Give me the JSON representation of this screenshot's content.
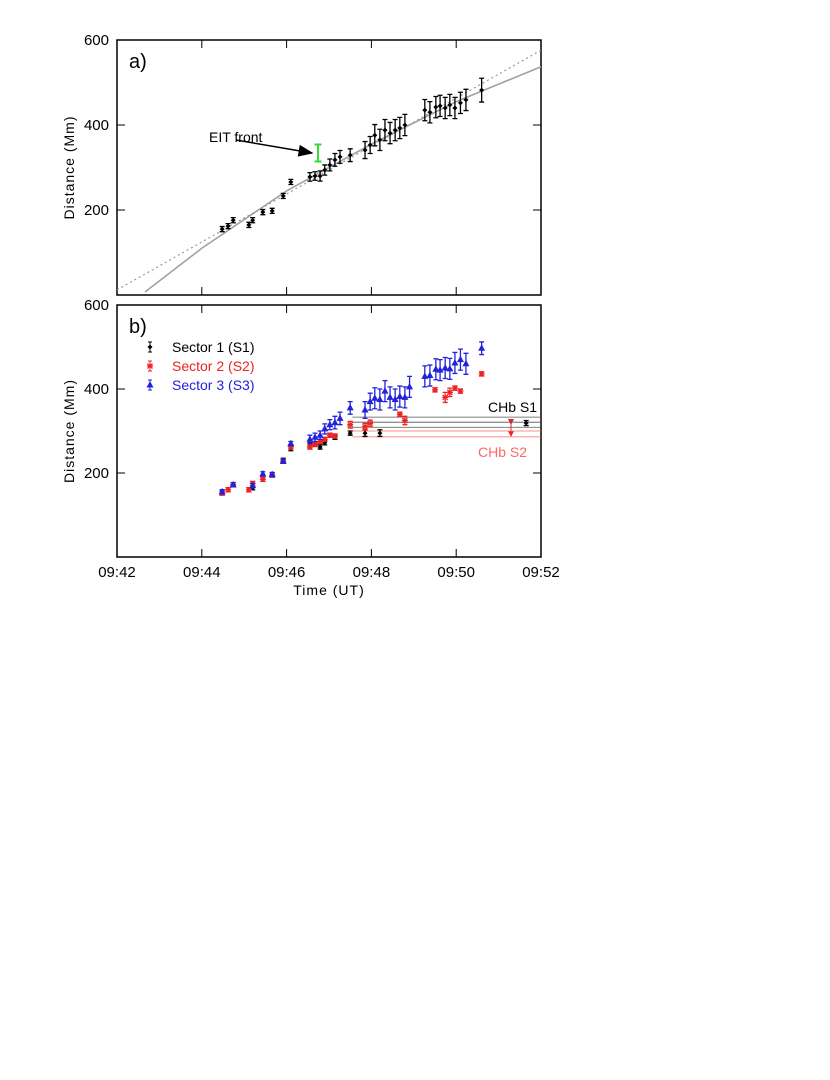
{
  "chart_data": [
    {
      "type": "scatter",
      "panel_label": "a)",
      "ylabel": "Distance (Mm)",
      "xlim": [
        42,
        52
      ],
      "ylim": [
        0,
        600
      ],
      "xticks": [
        {
          "value": 42,
          "label": "09:42"
        },
        {
          "value": 44,
          "label": "09:44"
        },
        {
          "value": 46,
          "label": "09:46"
        },
        {
          "value": 48,
          "label": "09:48"
        },
        {
          "value": 50,
          "label": "09:50"
        },
        {
          "value": 52,
          "label": "09:52"
        }
      ],
      "xtick_labels_shown": false,
      "yticks": [
        200,
        400,
        600
      ],
      "series": [
        {
          "color": "#000000",
          "marker": "diamond",
          "x": [
            44.48,
            44.62,
            44.74,
            45.11,
            45.2,
            45.44,
            45.66,
            45.92,
            46.1,
            46.55,
            46.67,
            46.79,
            46.9,
            47.02,
            47.14,
            47.26,
            47.5,
            47.85,
            47.97,
            48.08,
            48.2,
            48.32,
            48.44,
            48.56,
            48.67,
            48.79,
            49.26,
            49.38,
            49.52,
            49.62,
            49.74,
            49.85,
            49.97,
            50.1,
            50.23,
            50.6
          ],
          "values": [
            155,
            162,
            176,
            165,
            176,
            195,
            198,
            233,
            266,
            278,
            280,
            280,
            294,
            306,
            318,
            325,
            329,
            341,
            353,
            376,
            365,
            388,
            381,
            388,
            393,
            400,
            435,
            430,
            442,
            445,
            440,
            447,
            440,
            452,
            459,
            482
          ],
          "errors": [
            6,
            6,
            6,
            6,
            6,
            6,
            6,
            6,
            6,
            10,
            10,
            12,
            12,
            14,
            15,
            15,
            15,
            20,
            20,
            25,
            25,
            25,
            25,
            25,
            25,
            25,
            25,
            25,
            25,
            25,
            25,
            25,
            25,
            25,
            25,
            28
          ]
        },
        {
          "color": "#33dd33",
          "marker": "none",
          "x": [
            46.74
          ],
          "values": [
            334
          ],
          "errors": [
            20
          ]
        }
      ],
      "lines": [
        {
          "color": "#9aa5a5",
          "style": "solid",
          "x": [
            42.66,
            44,
            46,
            48,
            50,
            52
          ],
          "values": [
            7,
            110,
            245,
            355,
            455,
            537
          ]
        },
        {
          "color": "#999999",
          "style": "dotted",
          "x": [
            42,
            52
          ],
          "values": [
            12,
            576
          ]
        }
      ],
      "annotations": [
        {
          "text": "EIT front"
        }
      ]
    },
    {
      "type": "scatter",
      "panel_label": "b)",
      "ylabel": "Distance (Mm)",
      "xlabel": "Time (UT)",
      "xlim": [
        42,
        52
      ],
      "ylim": [
        0,
        600
      ],
      "xticks": [
        {
          "value": 42,
          "label": "09:42"
        },
        {
          "value": 44,
          "label": "09:44"
        },
        {
          "value": 46,
          "label": "09:46"
        },
        {
          "value": 48,
          "label": "09:48"
        },
        {
          "value": 50,
          "label": "09:50"
        },
        {
          "value": 52,
          "label": "09:52"
        }
      ],
      "xtick_labels_shown": true,
      "yticks": [
        200,
        400,
        600
      ],
      "legend": "top-left",
      "series": [
        {
          "name": "Sector 1 (S1)",
          "color": "#000000",
          "marker": "diamond",
          "x": [
            44.48,
            44.74,
            45.2,
            45.66,
            45.92,
            46.1,
            46.55,
            46.67,
            46.79,
            46.9,
            47.14,
            47.5,
            47.85,
            48.2,
            51.65
          ],
          "values": [
            155,
            172,
            165,
            196,
            230,
            258,
            267,
            270,
            262,
            272,
            285,
            295,
            295,
            295,
            319
          ],
          "errors": [
            5,
            5,
            5,
            5,
            5,
            5,
            5,
            5,
            5,
            5,
            5,
            5,
            8,
            8,
            6
          ]
        },
        {
          "name": "Sector 2 (S2)",
          "color": "#ee2222",
          "marker": "star",
          "x": [
            44.48,
            44.62,
            44.74,
            45.11,
            45.2,
            45.44,
            45.66,
            45.92,
            46.1,
            46.55,
            46.67,
            46.79,
            46.9,
            47.02,
            47.14,
            47.5,
            47.85,
            47.97,
            48.67,
            48.79,
            49.5,
            49.74,
            49.85,
            49.97,
            50.1,
            50.6
          ],
          "values": [
            152,
            160,
            172,
            160,
            175,
            185,
            195,
            228,
            262,
            262,
            268,
            275,
            280,
            290,
            288,
            315,
            310,
            318,
            340,
            325,
            398,
            380,
            392,
            402,
            395,
            436
          ],
          "errors": [
            5,
            5,
            5,
            5,
            5,
            5,
            5,
            5,
            5,
            5,
            5,
            5,
            5,
            5,
            5,
            8,
            8,
            8,
            5,
            10,
            5,
            12,
            10,
            5,
            5,
            5
          ]
        },
        {
          "name": "Sector 3 (S3)",
          "color": "#2222dd",
          "marker": "triangle",
          "x": [
            44.48,
            44.74,
            45.2,
            45.44,
            45.66,
            45.92,
            46.1,
            46.55,
            46.67,
            46.79,
            46.9,
            47.02,
            47.14,
            47.26,
            47.5,
            47.85,
            47.97,
            48.08,
            48.2,
            48.32,
            48.44,
            48.56,
            48.67,
            48.79,
            48.9,
            49.26,
            49.38,
            49.52,
            49.62,
            49.74,
            49.85,
            49.97,
            50.1,
            50.23,
            50.6
          ],
          "values": [
            155,
            172,
            170,
            198,
            196,
            228,
            270,
            280,
            285,
            290,
            305,
            315,
            320,
            330,
            355,
            350,
            370,
            378,
            375,
            395,
            380,
            375,
            382,
            380,
            405,
            430,
            432,
            447,
            445,
            450,
            448,
            462,
            470,
            460,
            497
          ],
          "errors": [
            5,
            5,
            5,
            5,
            5,
            5,
            5,
            10,
            10,
            10,
            12,
            12,
            15,
            15,
            15,
            20,
            20,
            25,
            25,
            25,
            25,
            25,
            25,
            25,
            25,
            25,
            25,
            25,
            25,
            25,
            25,
            25,
            25,
            25,
            15
          ]
        }
      ],
      "reference_lines": [
        {
          "label": "CHb S1",
          "color": "#555555",
          "x_start": 47.55,
          "levels": [
            333,
            321,
            309
          ]
        },
        {
          "label": "CHb S2",
          "color": "#ff6666",
          "x_start": 47.55,
          "levels": [
            300,
            286
          ]
        }
      ]
    }
  ]
}
